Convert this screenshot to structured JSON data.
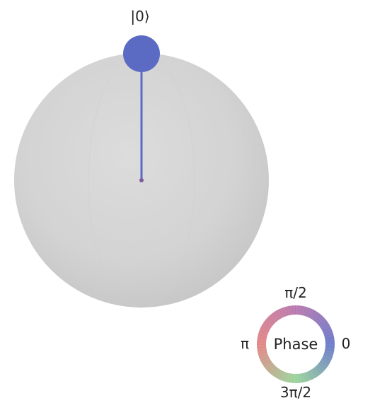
{
  "bloch_sphere": {
    "state_label": "|0⟩",
    "sphere_color": "#d6d6d6",
    "vector_color": "#5b6bc4",
    "center_dot_color": "#7a5a9a",
    "vector_direction": "up"
  },
  "phase_legend": {
    "title": "Phase",
    "labels": {
      "right": "0",
      "top": "π/2",
      "left": "π",
      "bottom": "3π/2"
    },
    "colors": {
      "phase_0": "#5b6bc4",
      "phase_pi_2": "#b06aa6",
      "phase_pi": "#e07878",
      "phase_3pi_2": "#8fd08f"
    }
  }
}
